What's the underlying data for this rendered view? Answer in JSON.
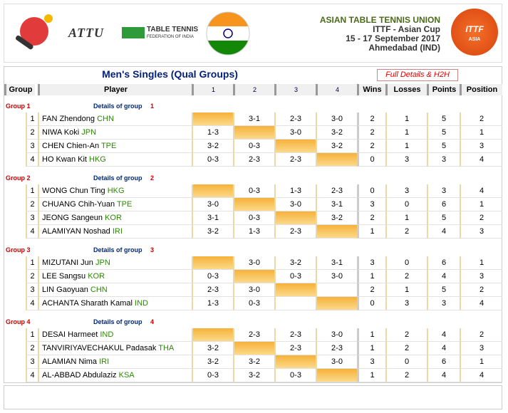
{
  "header": {
    "org": "ASIAN TABLE TENNIS UNION",
    "event": "ITTF - Asian Cup",
    "dates": "15 - 17 September 2017",
    "venue": "Ahmedabad (IND)",
    "logos": {
      "attu": "ATTU",
      "federation_title": "TABLE TENNIS",
      "federation_sub": "FEDERATION OF INDIA",
      "ittf": "ITTF",
      "ittf_region": "ASIA"
    }
  },
  "table": {
    "title": "Men's Singles (Qual Groups)",
    "link": "Full Details & H2H",
    "columns": [
      "Group",
      "Player",
      "1",
      "2",
      "3",
      "4",
      "Wins",
      "Losses",
      "Points",
      "Position"
    ],
    "groups": [
      {
        "label": "Group 1",
        "details": "Details of group",
        "number": "1",
        "players": [
          {
            "pos": 1,
            "name": "FAN Zhendong",
            "country": "CHN",
            "results": [
              null,
              "3-1",
              "2-3",
              "3-0"
            ],
            "wins": 2,
            "losses": 1,
            "points": 5,
            "position": 2
          },
          {
            "pos": 2,
            "name": "NIWA Koki",
            "country": "JPN",
            "results": [
              "1-3",
              null,
              "3-0",
              "3-2"
            ],
            "wins": 2,
            "losses": 1,
            "points": 5,
            "position": 1
          },
          {
            "pos": 3,
            "name": "CHEN Chien-An",
            "country": "TPE",
            "results": [
              "3-2",
              "0-3",
              null,
              "3-2"
            ],
            "wins": 2,
            "losses": 1,
            "points": 5,
            "position": 3
          },
          {
            "pos": 4,
            "name": "HO Kwan Kit",
            "country": "HKG",
            "results": [
              "0-3",
              "2-3",
              "2-3",
              null
            ],
            "wins": 0,
            "losses": 3,
            "points": 3,
            "position": 4
          }
        ]
      },
      {
        "label": "Group 2",
        "details": "Details of group",
        "number": "2",
        "players": [
          {
            "pos": 1,
            "name": "WONG Chun Ting",
            "country": "HKG",
            "results": [
              null,
              "0-3",
              "1-3",
              "2-3"
            ],
            "wins": 0,
            "losses": 3,
            "points": 3,
            "position": 4
          },
          {
            "pos": 2,
            "name": "CHUANG Chih-Yuan",
            "country": "TPE",
            "results": [
              "3-0",
              null,
              "3-0",
              "3-1"
            ],
            "wins": 3,
            "losses": 0,
            "points": 6,
            "position": 1
          },
          {
            "pos": 3,
            "name": "JEONG Sangeun",
            "country": "KOR",
            "results": [
              "3-1",
              "0-3",
              null,
              "3-2"
            ],
            "wins": 2,
            "losses": 1,
            "points": 5,
            "position": 2
          },
          {
            "pos": 4,
            "name": "ALAMIYAN Noshad",
            "country": "IRI",
            "results": [
              "3-2",
              "1-3",
              "2-3",
              null
            ],
            "wins": 1,
            "losses": 2,
            "points": 4,
            "position": 3
          }
        ]
      },
      {
        "label": "Group 3",
        "details": "Details of group",
        "number": "3",
        "players": [
          {
            "pos": 1,
            "name": "MIZUTANI Jun",
            "country": "JPN",
            "results": [
              null,
              "3-0",
              "3-2",
              "3-1"
            ],
            "wins": 3,
            "losses": 0,
            "points": 6,
            "position": 1
          },
          {
            "pos": 2,
            "name": "LEE Sangsu",
            "country": "KOR",
            "results": [
              "0-3",
              null,
              "0-3",
              "3-0"
            ],
            "wins": 1,
            "losses": 2,
            "points": 4,
            "position": 3
          },
          {
            "pos": 3,
            "name": "LIN Gaoyuan",
            "country": "CHN",
            "results": [
              "2-3",
              "3-0",
              null,
              null
            ],
            "wins": 2,
            "losses": 1,
            "points": 5,
            "position": 2
          },
          {
            "pos": 4,
            "name": "ACHANTA Sharath Kamal",
            "country": "IND",
            "results": [
              "1-3",
              "0-3",
              null,
              null
            ],
            "wins": 0,
            "losses": 3,
            "points": 3,
            "position": 4
          }
        ]
      },
      {
        "label": "Group 4",
        "details": "Details of group",
        "number": "4",
        "players": [
          {
            "pos": 1,
            "name": "DESAI Harmeet",
            "country": "IND",
            "results": [
              null,
              "2-3",
              "2-3",
              "3-0"
            ],
            "wins": 1,
            "losses": 2,
            "points": 4,
            "position": 2
          },
          {
            "pos": 2,
            "name": "TANVIRIYAVECHAKUL Padasak",
            "country": "THA",
            "results": [
              "3-2",
              null,
              "2-3",
              "2-3"
            ],
            "wins": 1,
            "losses": 2,
            "points": 4,
            "position": 3
          },
          {
            "pos": 3,
            "name": "ALAMIAN Nima",
            "country": "IRI",
            "results": [
              "3-2",
              "3-2",
              null,
              "3-0"
            ],
            "wins": 3,
            "losses": 0,
            "points": 6,
            "position": 1
          },
          {
            "pos": 4,
            "name": "AL-ABBAD Abdulaziz",
            "country": "KSA",
            "results": [
              "0-3",
              "3-2",
              "0-3",
              null
            ],
            "wins": 1,
            "losses": 2,
            "points": 4,
            "position": 4
          }
        ]
      }
    ]
  }
}
